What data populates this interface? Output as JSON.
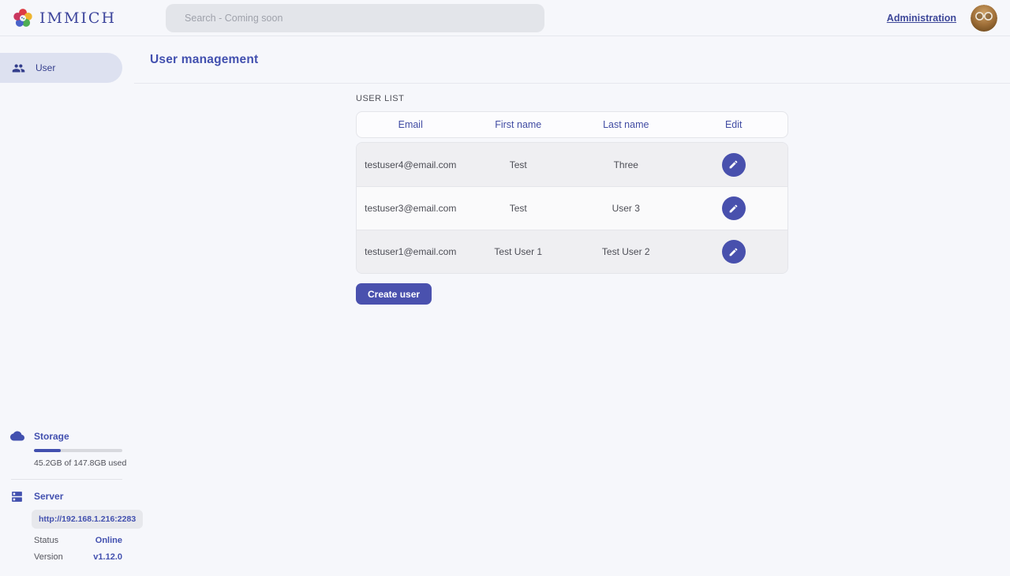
{
  "colors": {
    "accent": "#4250af",
    "pill_background": "#dde1f0",
    "row_alternate": "#efeff2",
    "search_background": "#e3e5ea"
  },
  "topbar": {
    "brand": "IMMICH",
    "logo_icon": "immich-flower-logo",
    "search_placeholder": "Search - Coming soon",
    "admin_link": "Administration",
    "avatar_icon": "user-avatar-photo"
  },
  "sidebar": {
    "nav_user_label": "User",
    "nav_user_icon": "users-icon",
    "storage": {
      "icon": "cloud-icon",
      "title": "Storage",
      "usage_text": "45.2GB of 147.8GB used",
      "percent": 30.6
    },
    "server": {
      "icon": "dns-server-icon",
      "title": "Server",
      "url": "http://192.168.1.216:2283",
      "status_label": "Status",
      "status_value": "Online",
      "version_label": "Version",
      "version_value": "v1.12.0"
    }
  },
  "main": {
    "page_title": "User management",
    "section_title": "USER LIST",
    "table": {
      "headers": [
        "Email",
        "First name",
        "Last name",
        "Edit"
      ],
      "edit_icon": "pencil-icon",
      "rows": [
        {
          "email": "testuser4@email.com",
          "first_name": "Test",
          "last_name": "Three"
        },
        {
          "email": "testuser3@email.com",
          "first_name": "Test",
          "last_name": "User 3"
        },
        {
          "email": "testuser1@email.com",
          "first_name": "Test User 1",
          "last_name": "Test User 2"
        }
      ]
    },
    "create_button": "Create user"
  }
}
